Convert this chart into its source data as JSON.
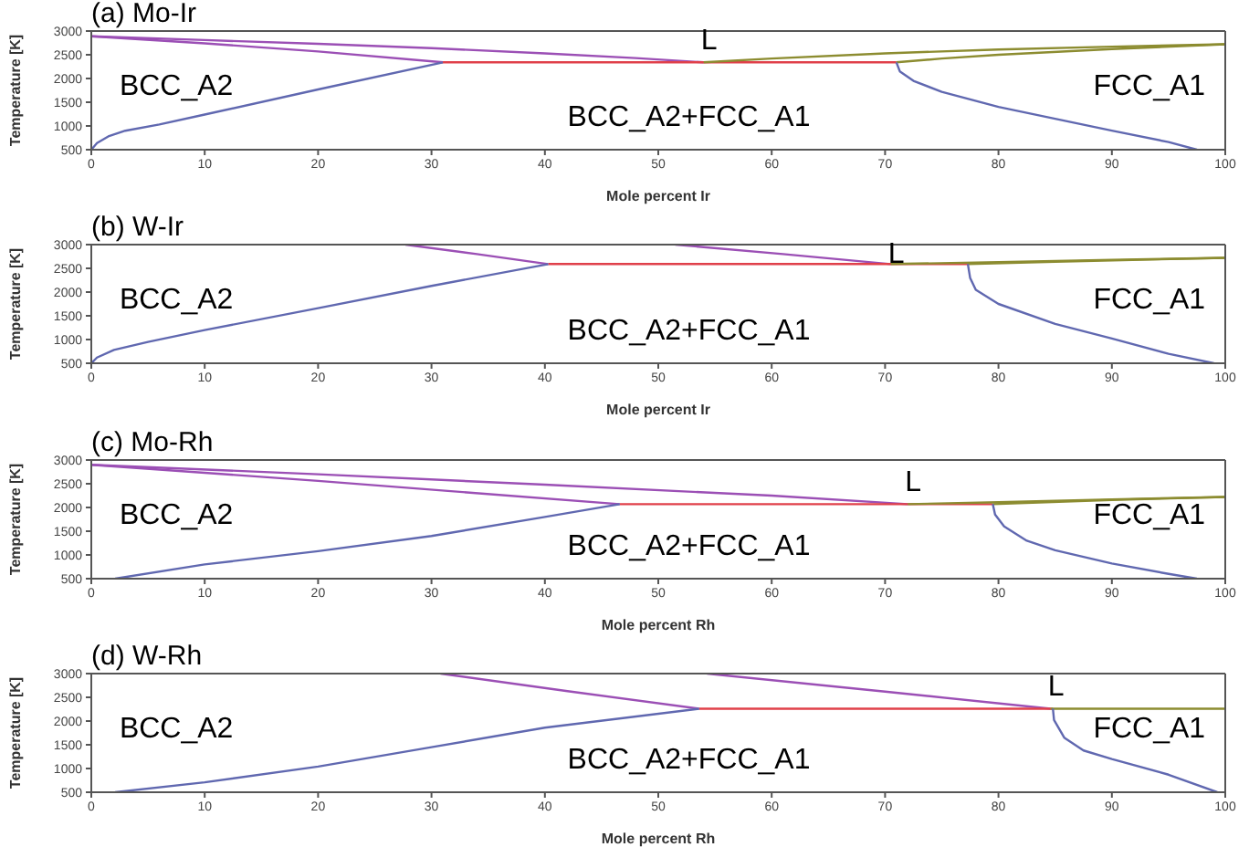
{
  "chart_data": [
    {
      "type": "line",
      "title": "(a) Mo-Ir",
      "xlabel": "Mole percent Ir",
      "ylabel": "Temperature [K]",
      "xlim": [
        0,
        100
      ],
      "ylim": [
        500,
        3000
      ],
      "xticks": [
        0,
        10,
        20,
        30,
        40,
        50,
        60,
        70,
        80,
        90,
        100
      ],
      "yticks": [
        500,
        1000,
        1500,
        2000,
        2500,
        3000
      ],
      "series": [
        {
          "color": "#9b4fb5",
          "x": [
            0,
            10,
            20,
            30,
            40,
            48,
            54
          ],
          "values": [
            2890,
            2810,
            2730,
            2640,
            2530,
            2430,
            2340
          ]
        },
        {
          "color": "#9b4fb5",
          "x": [
            0,
            10,
            20,
            31
          ],
          "values": [
            2890,
            2740,
            2570,
            2340
          ]
        },
        {
          "color": "#e0404a",
          "x": [
            31,
            71
          ],
          "values": [
            2340,
            2340
          ]
        },
        {
          "color": "#8c8c30",
          "x": [
            54,
            60,
            70,
            80,
            90,
            100
          ],
          "values": [
            2340,
            2420,
            2530,
            2610,
            2670,
            2720
          ]
        },
        {
          "color": "#8c8c30",
          "x": [
            71,
            75,
            80,
            90,
            100
          ],
          "values": [
            2340,
            2420,
            2500,
            2620,
            2720
          ]
        },
        {
          "color": "#6068b0",
          "x": [
            0,
            0.5,
            1.5,
            3,
            6,
            10,
            20,
            31
          ],
          "values": [
            500,
            640,
            780,
            900,
            1030,
            1240,
            1770,
            2340
          ]
        },
        {
          "color": "#6068b0",
          "x": [
            71,
            71.3,
            72.5,
            75,
            80,
            85,
            90,
            95,
            97.5
          ],
          "values": [
            2340,
            2150,
            1950,
            1720,
            1400,
            1150,
            900,
            660,
            500
          ]
        }
      ],
      "annotations": [
        "L",
        "BCC_A2",
        "FCC_A1",
        "BCC_A2+FCC_A1"
      ]
    },
    {
      "type": "line",
      "title": "(b) W-Ir",
      "xlabel": "Mole percent Ir",
      "ylabel": "Temperature [K]",
      "xlim": [
        0,
        100
      ],
      "ylim": [
        500,
        3000
      ],
      "xticks": [
        0,
        10,
        20,
        30,
        40,
        50,
        60,
        70,
        80,
        90,
        100
      ],
      "yticks": [
        500,
        1000,
        1500,
        2000,
        2500,
        3000
      ],
      "series": [
        {
          "color": "#9b4fb5",
          "x": [
            27.7,
            34,
            40.3
          ],
          "values": [
            3000,
            2800,
            2590
          ]
        },
        {
          "color": "#9b4fb5",
          "x": [
            51.5,
            61,
            70.5
          ],
          "values": [
            3000,
            2800,
            2590
          ]
        },
        {
          "color": "#e0404a",
          "x": [
            40.3,
            77.3
          ],
          "values": [
            2590,
            2590
          ]
        },
        {
          "color": "#8c8c30",
          "x": [
            70.5,
            80,
            90,
            100
          ],
          "values": [
            2590,
            2630,
            2680,
            2720
          ]
        },
        {
          "color": "#8c8c30",
          "x": [
            77.3,
            85,
            100
          ],
          "values": [
            2590,
            2640,
            2720
          ]
        },
        {
          "color": "#6068b0",
          "x": [
            0,
            0.5,
            2,
            5,
            10,
            20,
            30,
            40.3
          ],
          "values": [
            500,
            620,
            780,
            950,
            1200,
            1660,
            2130,
            2590
          ]
        },
        {
          "color": "#6068b0",
          "x": [
            77.3,
            77.5,
            78,
            80,
            85,
            90,
            95,
            99
          ],
          "values": [
            2590,
            2300,
            2050,
            1750,
            1330,
            1020,
            700,
            500
          ]
        }
      ],
      "annotations": [
        "L",
        "BCC_A2",
        "FCC_A1",
        "BCC_A2+FCC_A1"
      ]
    },
    {
      "type": "line",
      "title": "(c) Mo-Rh",
      "xlabel": "Mole percent Rh",
      "ylabel": "Temperature [K]",
      "xlim": [
        0,
        100
      ],
      "ylim": [
        500,
        3000
      ],
      "xticks": [
        0,
        10,
        20,
        30,
        40,
        50,
        60,
        70,
        80,
        90,
        100
      ],
      "yticks": [
        500,
        1000,
        1500,
        2000,
        2500,
        3000
      ],
      "series": [
        {
          "color": "#9b4fb5",
          "x": [
            0,
            20,
            40,
            60,
            72
          ],
          "values": [
            2900,
            2700,
            2480,
            2250,
            2070
          ]
        },
        {
          "color": "#9b4fb5",
          "x": [
            0,
            20,
            46.6
          ],
          "values": [
            2900,
            2560,
            2070
          ]
        },
        {
          "color": "#e0404a",
          "x": [
            46.6,
            79.5
          ],
          "values": [
            2070,
            2070
          ]
        },
        {
          "color": "#8c8c30",
          "x": [
            72,
            80,
            90,
            100
          ],
          "values": [
            2070,
            2110,
            2170,
            2220
          ]
        },
        {
          "color": "#8c8c30",
          "x": [
            79.5,
            90,
            100
          ],
          "values": [
            2070,
            2160,
            2220
          ]
        },
        {
          "color": "#6068b0",
          "x": [
            2.1,
            10,
            20,
            30,
            40,
            46.6
          ],
          "values": [
            500,
            800,
            1080,
            1400,
            1800,
            2070
          ]
        },
        {
          "color": "#6068b0",
          "x": [
            79.5,
            79.7,
            80.5,
            82.5,
            85,
            90,
            95,
            97.5
          ],
          "values": [
            2070,
            1850,
            1600,
            1300,
            1100,
            820,
            600,
            500
          ]
        }
      ],
      "annotations": [
        "L",
        "BCC_A2",
        "FCC_A1",
        "BCC_A2+FCC_A1"
      ]
    },
    {
      "type": "line",
      "title": "(d) W-Rh",
      "xlabel": "Mole percent Rh",
      "ylabel": "Temperature [K]",
      "xlim": [
        0,
        100
      ],
      "ylim": [
        500,
        3000
      ],
      "xticks": [
        0,
        10,
        20,
        30,
        40,
        50,
        60,
        70,
        80,
        90,
        100
      ],
      "yticks": [
        500,
        1000,
        1500,
        2000,
        2500,
        3000
      ],
      "series": [
        {
          "color": "#9b4fb5",
          "x": [
            30.8,
            42,
            53.6
          ],
          "values": [
            3000,
            2630,
            2260
          ]
        },
        {
          "color": "#9b4fb5",
          "x": [
            54.3,
            70,
            84.6
          ],
          "values": [
            3000,
            2620,
            2260
          ]
        },
        {
          "color": "#e0404a",
          "x": [
            53.6,
            84.8
          ],
          "values": [
            2260,
            2260
          ]
        },
        {
          "color": "#8c8c30",
          "x": [
            84.6,
            100
          ],
          "values": [
            2260,
            2260
          ]
        },
        {
          "color": "#6068b0",
          "x": [
            2.1,
            10,
            20,
            30,
            40,
            53.6
          ],
          "values": [
            500,
            710,
            1040,
            1450,
            1860,
            2260
          ]
        },
        {
          "color": "#6068b0",
          "x": [
            84.8,
            84.9,
            85.8,
            87.5,
            90,
            95,
            99.3
          ],
          "values": [
            2260,
            2020,
            1650,
            1380,
            1200,
            870,
            500
          ]
        }
      ],
      "annotations": [
        "L",
        "BCC_A2",
        "FCC_A1",
        "BCC_A2+FCC_A1"
      ]
    }
  ]
}
